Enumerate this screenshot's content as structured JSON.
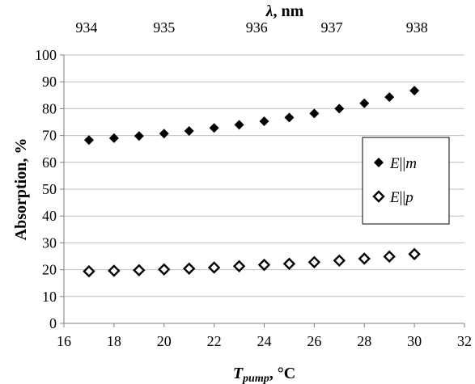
{
  "chart_data": {
    "type": "scatter",
    "x": [
      17,
      18,
      19,
      20,
      21,
      22,
      23,
      24,
      25,
      26,
      27,
      28,
      29,
      30
    ],
    "series": [
      {
        "name": "E||m",
        "marker": "filled-diamond",
        "values": [
          68.3,
          69.0,
          69.8,
          70.7,
          71.7,
          72.8,
          74.0,
          75.3,
          76.7,
          78.2,
          80.0,
          82.0,
          84.3,
          86.7
        ]
      },
      {
        "name": "E||p",
        "marker": "open-diamond",
        "values": [
          19.4,
          19.6,
          19.8,
          20.1,
          20.4,
          20.8,
          21.3,
          21.8,
          22.2,
          22.8,
          23.4,
          24.1,
          24.9,
          25.8
        ]
      }
    ],
    "xlabel": {
      "main": "T",
      "sub": "pump",
      "unit": ", °C"
    },
    "ylabel": "Absorption, %",
    "x2label": {
      "symbol": "λ",
      "unit": ", nm"
    },
    "xlim": [
      16,
      32
    ],
    "ylim": [
      0,
      100
    ],
    "xticks": [
      16,
      18,
      20,
      22,
      24,
      26,
      28,
      30,
      32
    ],
    "yticks": [
      0,
      10,
      20,
      30,
      40,
      50,
      60,
      70,
      80,
      90,
      100
    ],
    "x2ticks": [
      {
        "label": "934",
        "at": 16.9
      },
      {
        "label": "935",
        "at": 20.0
      },
      {
        "label": "936",
        "at": 23.7
      },
      {
        "label": "937",
        "at": 26.7
      },
      {
        "label": "938",
        "at": 30.1
      }
    ],
    "grid": {
      "y": true,
      "x": false
    },
    "legend": {
      "placement": "right-middle",
      "entries": [
        {
          "symbol": "E",
          "sep": "||",
          "var": "m"
        },
        {
          "symbol": "E",
          "sep": "||",
          "var": "p"
        }
      ]
    },
    "colors": {
      "marker": "#000000",
      "grid": "#bfbfbf",
      "axis": "#7f7f7f"
    }
  }
}
